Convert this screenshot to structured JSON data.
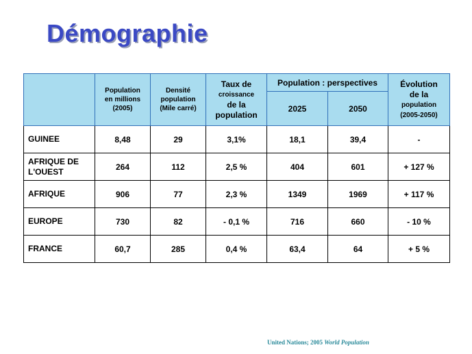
{
  "title": "Démographie",
  "table": {
    "headers": {
      "population_line1": "Population",
      "population_line2": "en millions",
      "population_line3": "(2005)",
      "densite_line1": "Densité",
      "densite_line2": "population",
      "densite_line3": "(Mile carré)",
      "taux_line1": "Taux de",
      "taux_line2": "croissance",
      "taux_line3": "de la",
      "taux_line4": "population",
      "perspectives": "Population : perspectives",
      "year_2025": "2025",
      "year_2050": "2050",
      "evolution_line1": "Évolution",
      "evolution_line2": "de la",
      "evolution_line3": "population",
      "evolution_line4": "(2005-2050)"
    },
    "rows": [
      {
        "label_line1": "GUINEE",
        "label_line2": "",
        "population": "8,48",
        "densite": "29",
        "taux": "3,1%",
        "p2025": "18,1",
        "p2050": "39,4",
        "evolution": "-"
      },
      {
        "label_line1": "AFRIQUE DE",
        "label_line2": "L'OUEST",
        "population": "264",
        "densite": "112",
        "taux": "2,5 %",
        "p2025": "404",
        "p2050": "601",
        "evolution": "+ 127 %"
      },
      {
        "label_line1": "AFRIQUE",
        "label_line2": "",
        "population": "906",
        "densite": "77",
        "taux": "2,3 %",
        "p2025": "1349",
        "p2050": "1969",
        "evolution": "+ 117 %"
      },
      {
        "label_line1": "EUROPE",
        "label_line2": "",
        "population": "730",
        "densite": "82",
        "taux": "- 0,1 %",
        "p2025": "716",
        "p2050": "660",
        "evolution": "- 10 %"
      },
      {
        "label_line1": "FRANCE",
        "label_line2": "",
        "population": "60,7",
        "densite": "285",
        "taux": "0,4 %",
        "p2025": "63,4",
        "p2050": "64",
        "evolution": "+ 5 %"
      }
    ]
  },
  "source": {
    "prefix": "United Nations; 2005 ",
    "italic": "World Population"
  },
  "colors": {
    "title": "#3b49c4",
    "header_bg": "#a9dcef",
    "header_border": "#2f6fb8",
    "source": "#2a8a9a"
  }
}
